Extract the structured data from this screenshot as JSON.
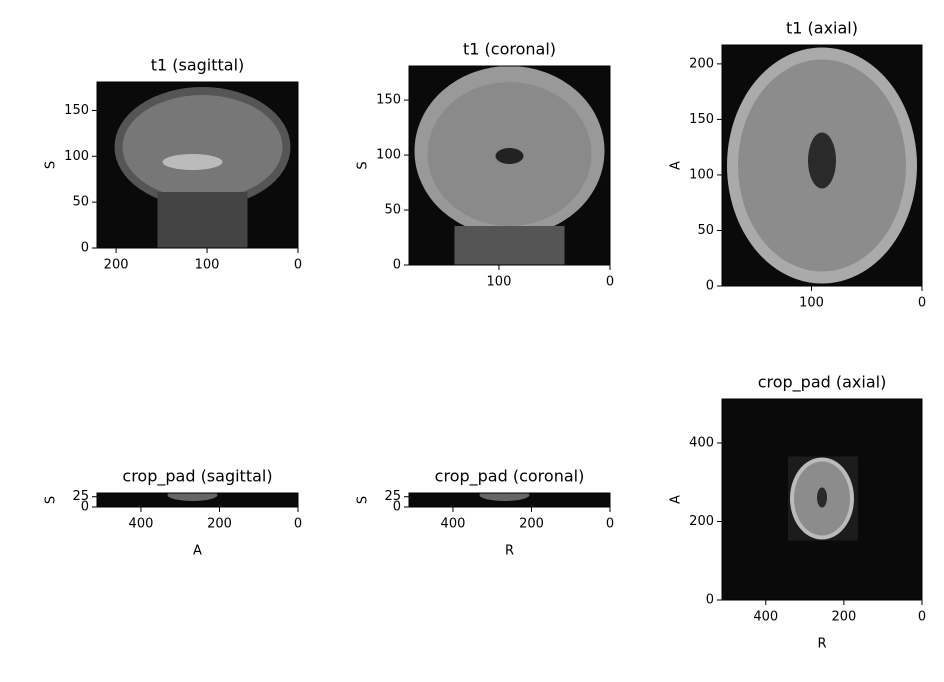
{
  "chart_data": [
    {
      "type": "image",
      "title": "t1 (sagittal)",
      "ylabel": "S",
      "xlim": [
        221,
        0
      ],
      "ylim": [
        0,
        181
      ],
      "xticks": [
        200,
        100,
        0
      ],
      "yticks": [
        0,
        50,
        100,
        150
      ]
    },
    {
      "type": "image",
      "title": "t1 (coronal)",
      "ylabel": "S",
      "xlim": [
        181,
        0
      ],
      "ylim": [
        0,
        181
      ],
      "xticks": [
        100,
        0
      ],
      "yticks": [
        0,
        50,
        100,
        150
      ]
    },
    {
      "type": "image",
      "title": "t1 (axial)",
      "ylabel": "A",
      "xlim": [
        181,
        0
      ],
      "ylim": [
        0,
        217
      ],
      "xticks": [
        100,
        0
      ],
      "yticks": [
        0,
        50,
        100,
        150,
        200
      ]
    },
    {
      "type": "image",
      "title": "crop_pad (sagittal)",
      "xlabel": "A",
      "ylabel": "S",
      "xlim": [
        512,
        0
      ],
      "ylim": [
        0,
        34
      ],
      "xticks": [
        400,
        200,
        0
      ],
      "yticks": [
        0,
        25
      ]
    },
    {
      "type": "image",
      "title": "crop_pad (coronal)",
      "xlabel": "R",
      "ylabel": "S",
      "xlim": [
        512,
        0
      ],
      "ylim": [
        0,
        34
      ],
      "xticks": [
        400,
        200,
        0
      ],
      "yticks": [
        0,
        25
      ]
    },
    {
      "type": "image",
      "title": "crop_pad (axial)",
      "xlabel": "R",
      "ylabel": "A",
      "xlim": [
        512,
        0
      ],
      "ylim": [
        0,
        512
      ],
      "xticks": [
        400,
        200,
        0
      ],
      "yticks": [
        0,
        200,
        400
      ]
    }
  ]
}
